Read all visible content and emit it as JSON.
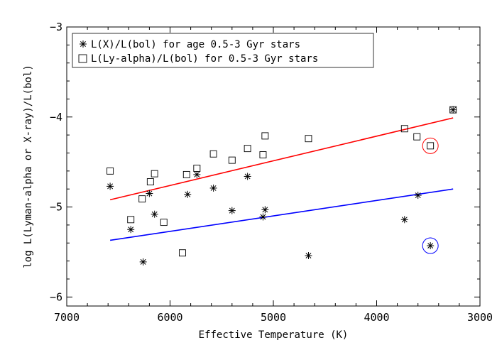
{
  "chart_data": {
    "type": "scatter",
    "xlabel": "Effective Temperature (K)",
    "ylabel": "log L(Lyman-alpha or X-ray)/L(bol)",
    "xlim": [
      7000,
      3000
    ],
    "ylim": [
      -6.1,
      -3.0
    ],
    "x_reversed": true,
    "xticks": [
      7000,
      6000,
      5000,
      4000,
      3000
    ],
    "yticks": [
      -6,
      -5,
      -4,
      -3
    ],
    "grid": false,
    "legend_position": "top-left",
    "series": [
      {
        "name": "L(X)/L(bol) for age 0.5-3 Gyr stars",
        "marker": "asterisk",
        "color": "#000000",
        "points": [
          [
            6580,
            -4.77
          ],
          [
            6380,
            -5.25
          ],
          [
            6260,
            -5.61
          ],
          [
            6200,
            -4.85
          ],
          [
            6150,
            -5.08
          ],
          [
            5830,
            -4.86
          ],
          [
            5740,
            -4.64
          ],
          [
            5580,
            -4.79
          ],
          [
            5400,
            -5.04
          ],
          [
            5250,
            -4.66
          ],
          [
            5100,
            -5.11
          ],
          [
            5080,
            -5.03
          ],
          [
            4660,
            -5.54
          ],
          [
            3730,
            -5.14
          ],
          [
            3600,
            -4.87
          ],
          [
            3480,
            -5.43
          ],
          [
            3260,
            -3.92
          ]
        ]
      },
      {
        "name": "L(Ly-alpha)/L(bol) for 0.5-3 Gyr stars",
        "marker": "square",
        "color": "#000000",
        "points": [
          [
            6580,
            -4.6
          ],
          [
            6380,
            -5.14
          ],
          [
            6270,
            -4.91
          ],
          [
            6190,
            -4.72
          ],
          [
            6150,
            -4.63
          ],
          [
            6060,
            -5.17
          ],
          [
            5880,
            -5.51
          ],
          [
            5840,
            -4.64
          ],
          [
            5740,
            -4.57
          ],
          [
            5580,
            -4.41
          ],
          [
            5400,
            -4.48
          ],
          [
            5250,
            -4.35
          ],
          [
            5100,
            -4.42
          ],
          [
            5080,
            -4.21
          ],
          [
            4660,
            -4.24
          ],
          [
            3730,
            -4.13
          ],
          [
            3610,
            -4.22
          ],
          [
            3480,
            -4.32
          ],
          [
            3260,
            -3.92
          ]
        ]
      }
    ],
    "fit_lines": [
      {
        "color": "#ff0000",
        "x": [
          6580,
          3260
        ],
        "y": [
          -4.92,
          -4.01
        ]
      },
      {
        "color": "#0000ff",
        "x": [
          6580,
          3260
        ],
        "y": [
          -5.37,
          -4.8
        ]
      }
    ],
    "highlight_circles": [
      {
        "color": "#ff0000",
        "x": 3480,
        "y": -4.32
      },
      {
        "color": "#0000ff",
        "x": 3480,
        "y": -5.43
      }
    ]
  }
}
